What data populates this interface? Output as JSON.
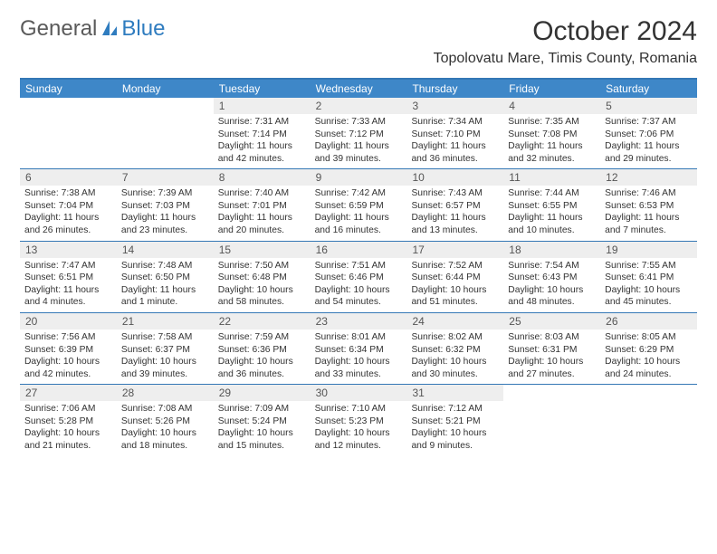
{
  "logo": {
    "text1": "General",
    "text2": "Blue"
  },
  "colors": {
    "header_bg": "#3e87c8",
    "header_text": "#ffffff",
    "rule": "#3477b5",
    "daynum_bg": "#eeeeee",
    "text": "#333333",
    "logo_gray": "#5a5a5a",
    "logo_blue": "#2f7cbf"
  },
  "title": "October 2024",
  "location": "Topolovatu Mare, Timis County, Romania",
  "day_headers": [
    "Sunday",
    "Monday",
    "Tuesday",
    "Wednesday",
    "Thursday",
    "Friday",
    "Saturday"
  ],
  "weeks": [
    [
      {
        "n": "",
        "sr": "",
        "ss": "",
        "dl": ""
      },
      {
        "n": "",
        "sr": "",
        "ss": "",
        "dl": ""
      },
      {
        "n": "1",
        "sr": "7:31 AM",
        "ss": "7:14 PM",
        "dl": "11 hours and 42 minutes."
      },
      {
        "n": "2",
        "sr": "7:33 AM",
        "ss": "7:12 PM",
        "dl": "11 hours and 39 minutes."
      },
      {
        "n": "3",
        "sr": "7:34 AM",
        "ss": "7:10 PM",
        "dl": "11 hours and 36 minutes."
      },
      {
        "n": "4",
        "sr": "7:35 AM",
        "ss": "7:08 PM",
        "dl": "11 hours and 32 minutes."
      },
      {
        "n": "5",
        "sr": "7:37 AM",
        "ss": "7:06 PM",
        "dl": "11 hours and 29 minutes."
      }
    ],
    [
      {
        "n": "6",
        "sr": "7:38 AM",
        "ss": "7:04 PM",
        "dl": "11 hours and 26 minutes."
      },
      {
        "n": "7",
        "sr": "7:39 AM",
        "ss": "7:03 PM",
        "dl": "11 hours and 23 minutes."
      },
      {
        "n": "8",
        "sr": "7:40 AM",
        "ss": "7:01 PM",
        "dl": "11 hours and 20 minutes."
      },
      {
        "n": "9",
        "sr": "7:42 AM",
        "ss": "6:59 PM",
        "dl": "11 hours and 16 minutes."
      },
      {
        "n": "10",
        "sr": "7:43 AM",
        "ss": "6:57 PM",
        "dl": "11 hours and 13 minutes."
      },
      {
        "n": "11",
        "sr": "7:44 AM",
        "ss": "6:55 PM",
        "dl": "11 hours and 10 minutes."
      },
      {
        "n": "12",
        "sr": "7:46 AM",
        "ss": "6:53 PM",
        "dl": "11 hours and 7 minutes."
      }
    ],
    [
      {
        "n": "13",
        "sr": "7:47 AM",
        "ss": "6:51 PM",
        "dl": "11 hours and 4 minutes."
      },
      {
        "n": "14",
        "sr": "7:48 AM",
        "ss": "6:50 PM",
        "dl": "11 hours and 1 minute."
      },
      {
        "n": "15",
        "sr": "7:50 AM",
        "ss": "6:48 PM",
        "dl": "10 hours and 58 minutes."
      },
      {
        "n": "16",
        "sr": "7:51 AM",
        "ss": "6:46 PM",
        "dl": "10 hours and 54 minutes."
      },
      {
        "n": "17",
        "sr": "7:52 AM",
        "ss": "6:44 PM",
        "dl": "10 hours and 51 minutes."
      },
      {
        "n": "18",
        "sr": "7:54 AM",
        "ss": "6:43 PM",
        "dl": "10 hours and 48 minutes."
      },
      {
        "n": "19",
        "sr": "7:55 AM",
        "ss": "6:41 PM",
        "dl": "10 hours and 45 minutes."
      }
    ],
    [
      {
        "n": "20",
        "sr": "7:56 AM",
        "ss": "6:39 PM",
        "dl": "10 hours and 42 minutes."
      },
      {
        "n": "21",
        "sr": "7:58 AM",
        "ss": "6:37 PM",
        "dl": "10 hours and 39 minutes."
      },
      {
        "n": "22",
        "sr": "7:59 AM",
        "ss": "6:36 PM",
        "dl": "10 hours and 36 minutes."
      },
      {
        "n": "23",
        "sr": "8:01 AM",
        "ss": "6:34 PM",
        "dl": "10 hours and 33 minutes."
      },
      {
        "n": "24",
        "sr": "8:02 AM",
        "ss": "6:32 PM",
        "dl": "10 hours and 30 minutes."
      },
      {
        "n": "25",
        "sr": "8:03 AM",
        "ss": "6:31 PM",
        "dl": "10 hours and 27 minutes."
      },
      {
        "n": "26",
        "sr": "8:05 AM",
        "ss": "6:29 PM",
        "dl": "10 hours and 24 minutes."
      }
    ],
    [
      {
        "n": "27",
        "sr": "7:06 AM",
        "ss": "5:28 PM",
        "dl": "10 hours and 21 minutes."
      },
      {
        "n": "28",
        "sr": "7:08 AM",
        "ss": "5:26 PM",
        "dl": "10 hours and 18 minutes."
      },
      {
        "n": "29",
        "sr": "7:09 AM",
        "ss": "5:24 PM",
        "dl": "10 hours and 15 minutes."
      },
      {
        "n": "30",
        "sr": "7:10 AM",
        "ss": "5:23 PM",
        "dl": "10 hours and 12 minutes."
      },
      {
        "n": "31",
        "sr": "7:12 AM",
        "ss": "5:21 PM",
        "dl": "10 hours and 9 minutes."
      },
      {
        "n": "",
        "sr": "",
        "ss": "",
        "dl": ""
      },
      {
        "n": "",
        "sr": "",
        "ss": "",
        "dl": ""
      }
    ]
  ]
}
